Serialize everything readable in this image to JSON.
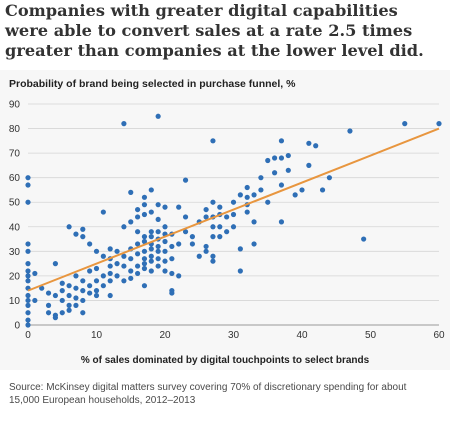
{
  "headline": "Companies with greater digital capabilities were able to convert sales at a rate 2.5 times greater than companies at the lower level did.",
  "source": "Source: McKinsey digital matters survey covering 70% of discretionary spending for about 15,000 European households, 2012–2013",
  "colors": {
    "point": "#2f6fb6",
    "trend": "#e8963f",
    "grid": "#d6d6d6",
    "panel": "#f7f7f7"
  },
  "chart_data": {
    "type": "scatter",
    "title": "Probability of brand being selected in purchase funnel, %",
    "xlabel": "% of sales dominated by digital touchpoints to select brands",
    "ylabel": "",
    "xlim": [
      0,
      60
    ],
    "ylim": [
      0,
      90
    ],
    "xticks": [
      0,
      10,
      20,
      30,
      40,
      50,
      60
    ],
    "yticks": [
      0,
      10,
      20,
      30,
      40,
      50,
      60,
      70,
      80,
      90
    ],
    "grid": "horizontal",
    "trendline": [
      [
        0,
        14
      ],
      [
        60,
        80
      ]
    ],
    "points": [
      [
        0,
        60
      ],
      [
        0,
        57
      ],
      [
        0,
        50
      ],
      [
        0,
        33
      ],
      [
        0,
        30
      ],
      [
        0,
        25
      ],
      [
        0,
        22
      ],
      [
        0,
        20
      ],
      [
        0,
        18
      ],
      [
        0,
        15
      ],
      [
        0,
        12
      ],
      [
        0,
        10
      ],
      [
        0,
        8
      ],
      [
        0,
        5
      ],
      [
        0,
        2
      ],
      [
        0,
        0
      ],
      [
        1,
        21
      ],
      [
        1,
        10
      ],
      [
        2,
        15
      ],
      [
        3,
        13
      ],
      [
        3,
        8
      ],
      [
        3,
        5
      ],
      [
        4,
        25
      ],
      [
        4,
        12
      ],
      [
        4,
        4
      ],
      [
        4,
        3
      ],
      [
        5,
        17
      ],
      [
        5,
        14
      ],
      [
        5,
        10
      ],
      [
        5,
        5
      ],
      [
        6,
        40
      ],
      [
        6,
        16
      ],
      [
        6,
        12
      ],
      [
        6,
        8
      ],
      [
        6,
        6
      ],
      [
        7,
        37
      ],
      [
        7,
        20
      ],
      [
        7,
        15
      ],
      [
        7,
        11
      ],
      [
        7,
        8
      ],
      [
        8,
        39
      ],
      [
        8,
        36
      ],
      [
        8,
        18
      ],
      [
        8,
        14
      ],
      [
        8,
        10
      ],
      [
        8,
        5
      ],
      [
        9,
        33
      ],
      [
        9,
        22
      ],
      [
        9,
        16
      ],
      [
        9,
        13
      ],
      [
        10,
        30
      ],
      [
        10,
        23
      ],
      [
        10,
        18
      ],
      [
        10,
        14
      ],
      [
        10,
        12
      ],
      [
        11,
        46
      ],
      [
        11,
        28
      ],
      [
        11,
        20
      ],
      [
        11,
        16
      ],
      [
        12,
        31
      ],
      [
        12,
        27
      ],
      [
        12,
        24
      ],
      [
        12,
        21
      ],
      [
        12,
        18
      ],
      [
        12,
        12
      ],
      [
        13,
        30
      ],
      [
        13,
        25
      ],
      [
        13,
        20
      ],
      [
        14,
        82
      ],
      [
        14,
        40
      ],
      [
        14,
        28
      ],
      [
        14,
        24
      ],
      [
        14,
        18
      ],
      [
        15,
        54
      ],
      [
        15,
        42
      ],
      [
        15,
        31
      ],
      [
        15,
        27
      ],
      [
        15,
        22
      ],
      [
        15,
        19
      ],
      [
        16,
        47
      ],
      [
        16,
        44
      ],
      [
        16,
        38
      ],
      [
        16,
        33
      ],
      [
        16,
        29
      ],
      [
        16,
        24
      ],
      [
        16,
        21
      ],
      [
        17,
        52
      ],
      [
        17,
        49
      ],
      [
        17,
        45
      ],
      [
        17,
        36
      ],
      [
        17,
        34
      ],
      [
        17,
        30
      ],
      [
        17,
        27
      ],
      [
        17,
        25
      ],
      [
        17,
        23
      ],
      [
        17,
        16
      ],
      [
        18,
        55
      ],
      [
        18,
        46
      ],
      [
        18,
        38
      ],
      [
        18,
        36
      ],
      [
        18,
        33
      ],
      [
        18,
        31
      ],
      [
        18,
        28
      ],
      [
        18,
        26
      ],
      [
        18,
        22
      ],
      [
        19,
        85
      ],
      [
        19,
        49
      ],
      [
        19,
        43
      ],
      [
        19,
        38
      ],
      [
        19,
        35
      ],
      [
        19,
        32
      ],
      [
        19,
        30
      ],
      [
        19,
        27
      ],
      [
        19,
        24
      ],
      [
        20,
        48
      ],
      [
        20,
        40
      ],
      [
        20,
        37
      ],
      [
        20,
        34
      ],
      [
        20,
        30
      ],
      [
        20,
        26
      ],
      [
        20,
        22
      ],
      [
        21,
        37
      ],
      [
        21,
        32
      ],
      [
        21,
        27
      ],
      [
        21,
        21
      ],
      [
        21,
        14
      ],
      [
        21,
        13
      ],
      [
        22,
        48
      ],
      [
        22,
        33
      ],
      [
        22,
        20
      ],
      [
        23,
        59
      ],
      [
        23,
        44
      ],
      [
        23,
        38
      ],
      [
        24,
        36
      ],
      [
        24,
        33
      ],
      [
        25,
        42
      ],
      [
        25,
        28
      ],
      [
        26,
        47
      ],
      [
        26,
        44
      ],
      [
        26,
        32
      ],
      [
        26,
        30
      ],
      [
        27,
        75
      ],
      [
        27,
        50
      ],
      [
        27,
        44
      ],
      [
        27,
        40
      ],
      [
        27,
        36
      ],
      [
        27,
        28
      ],
      [
        27,
        26
      ],
      [
        28,
        48
      ],
      [
        28,
        45
      ],
      [
        28,
        40
      ],
      [
        28,
        36
      ],
      [
        29,
        44
      ],
      [
        29,
        38
      ],
      [
        30,
        50
      ],
      [
        30,
        45
      ],
      [
        30,
        40
      ],
      [
        31,
        53
      ],
      [
        31,
        31
      ],
      [
        31,
        22
      ],
      [
        32,
        56
      ],
      [
        32,
        52
      ],
      [
        32,
        49
      ],
      [
        32,
        46
      ],
      [
        33,
        53
      ],
      [
        33,
        42
      ],
      [
        33,
        33
      ],
      [
        34,
        60
      ],
      [
        34,
        55
      ],
      [
        35,
        67
      ],
      [
        35,
        50
      ],
      [
        36,
        68
      ],
      [
        36,
        62
      ],
      [
        37,
        75
      ],
      [
        37,
        68
      ],
      [
        37,
        57
      ],
      [
        37,
        42
      ],
      [
        38,
        69
      ],
      [
        38,
        63
      ],
      [
        39,
        53
      ],
      [
        40,
        55
      ],
      [
        41,
        65
      ],
      [
        41,
        74
      ],
      [
        42,
        73
      ],
      [
        43,
        55
      ],
      [
        44,
        60
      ],
      [
        47,
        79
      ],
      [
        49,
        35
      ],
      [
        55,
        82
      ],
      [
        60,
        82
      ]
    ]
  }
}
